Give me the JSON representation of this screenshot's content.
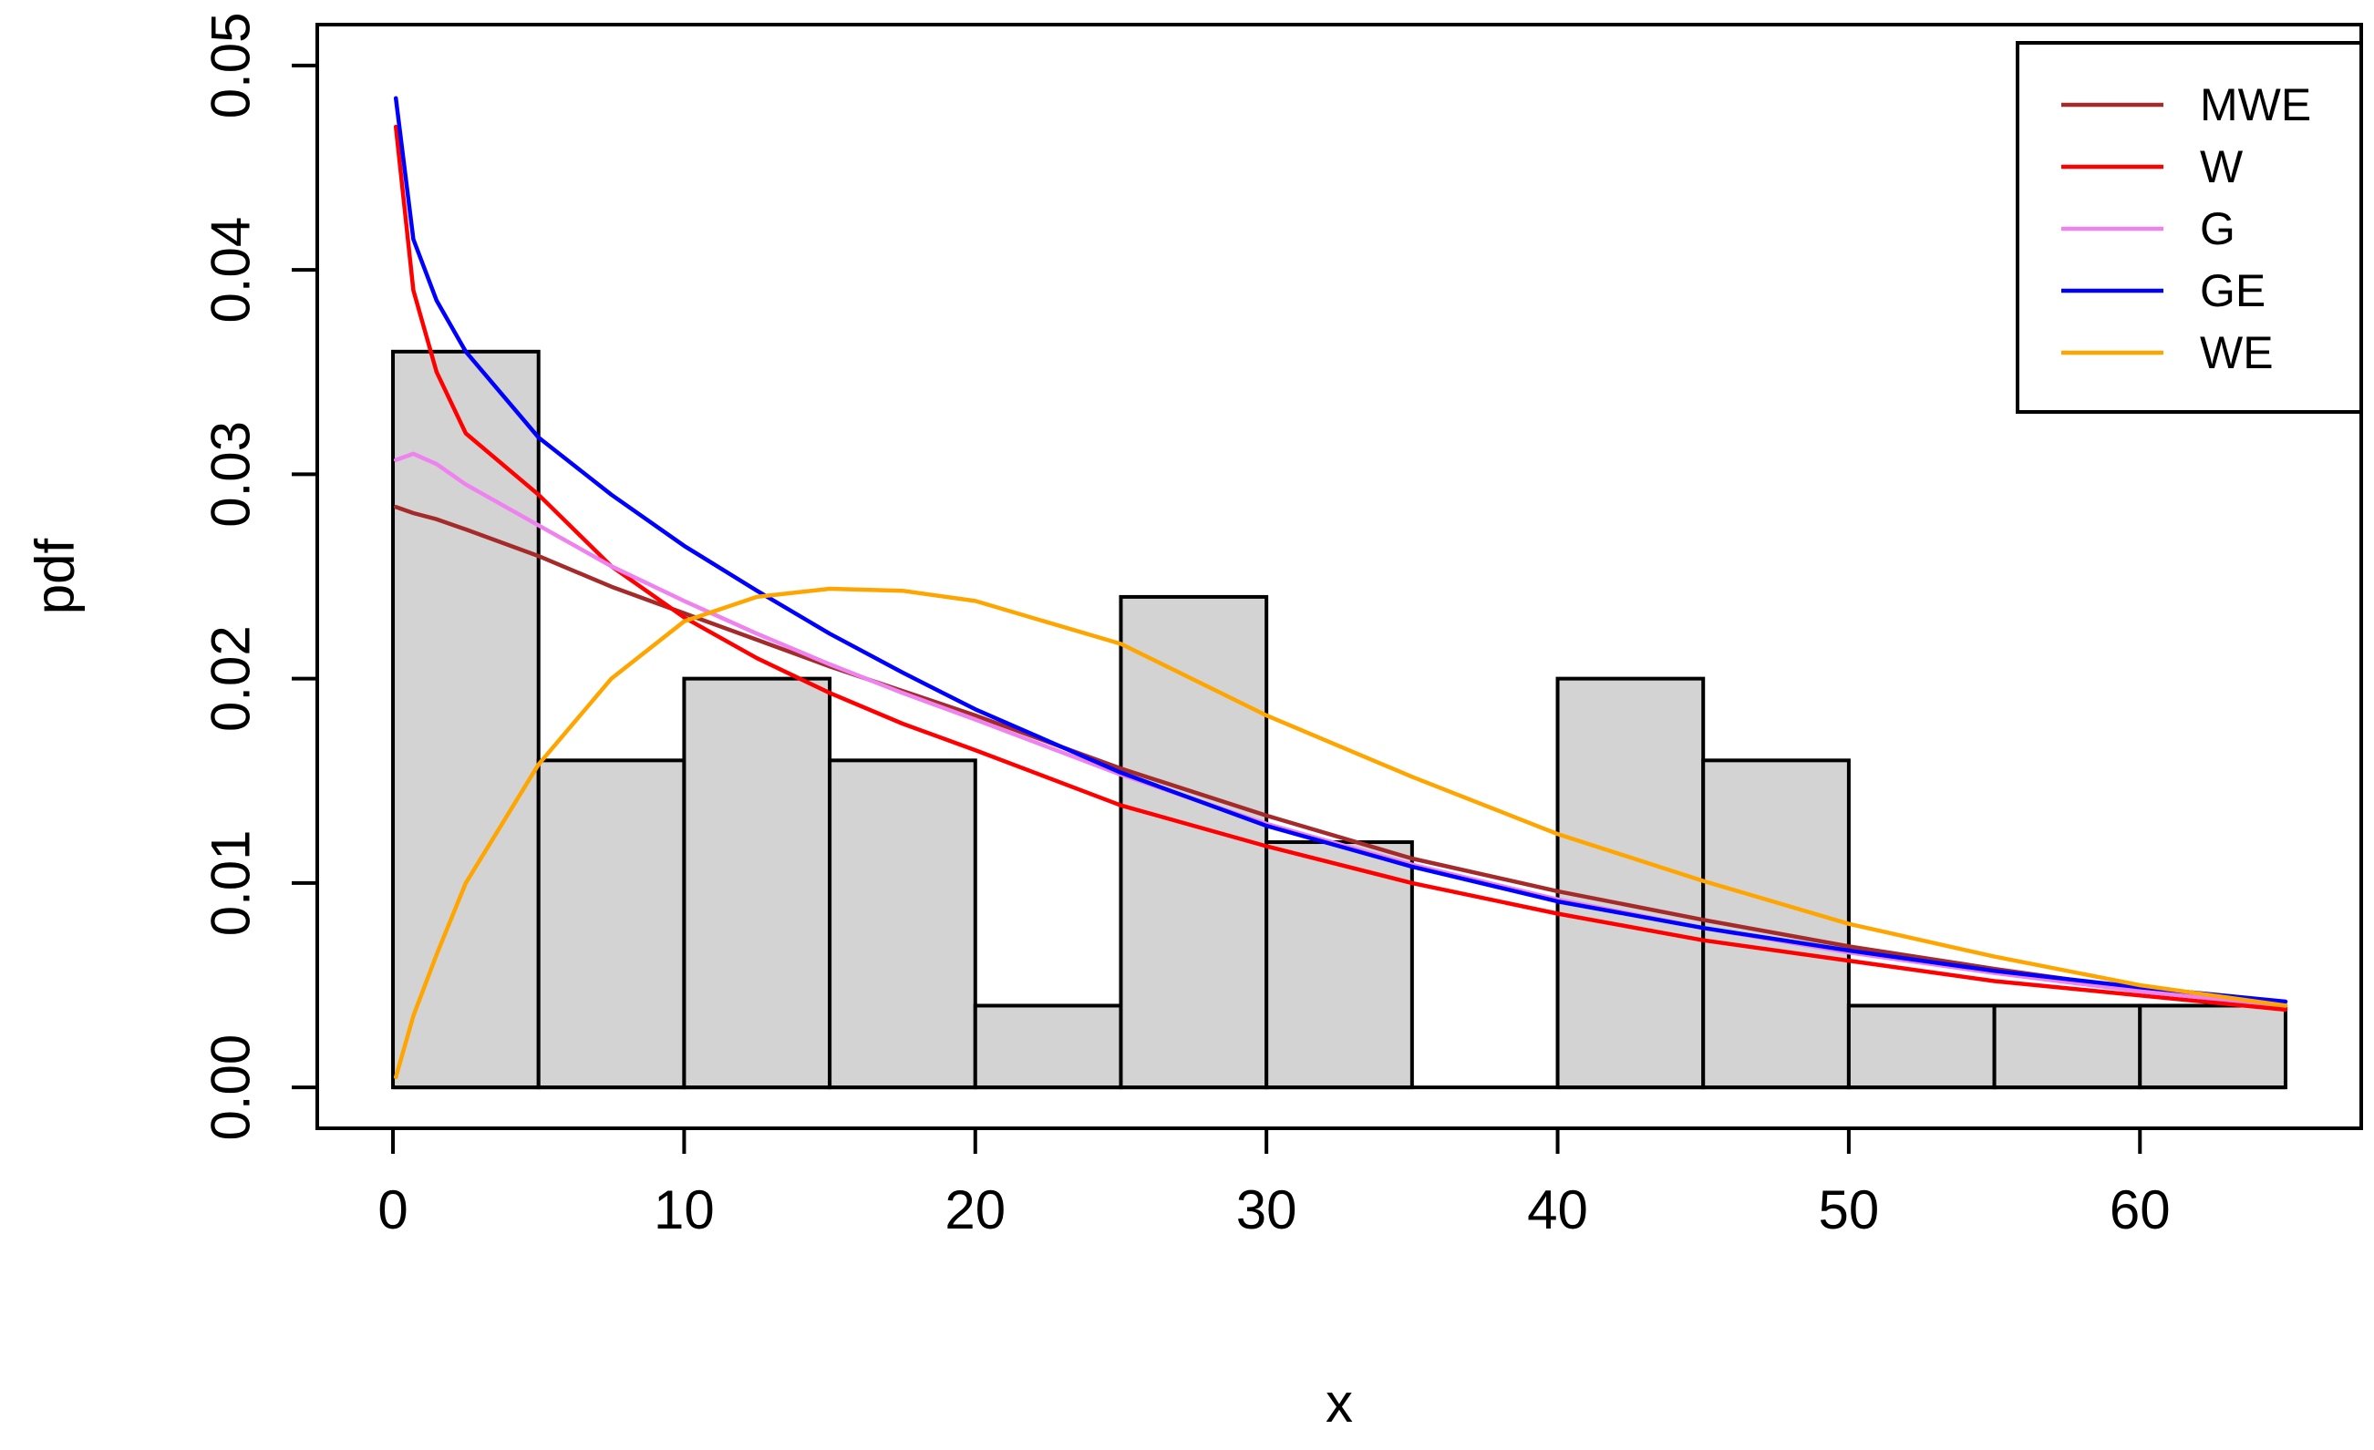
{
  "chart_data": {
    "type": "histogram",
    "title": "",
    "xlabel": "x",
    "ylabel": "pdf",
    "xlim": [
      -2.6,
      67.6
    ],
    "ylim": [
      -0.002,
      0.052
    ],
    "x_ticks": [
      0,
      10,
      20,
      30,
      40,
      50,
      60
    ],
    "x_tick_labels": [
      "0",
      "10",
      "20",
      "30",
      "40",
      "50",
      "60"
    ],
    "y_ticks": [
      0,
      0.01,
      0.02,
      0.03,
      0.04,
      0.05
    ],
    "y_tick_labels": [
      "0.00",
      "0.01",
      "0.02",
      "0.03",
      "0.04",
      "0.05"
    ],
    "grid": false,
    "histogram": {
      "bin_edges": [
        0,
        5,
        10,
        15,
        20,
        25,
        30,
        35,
        40,
        45,
        50,
        55,
        60,
        65
      ],
      "density": [
        0.036,
        0.016,
        0.02,
        0.016,
        0.004,
        0.024,
        0.012,
        0.0,
        0.02,
        0.016,
        0.004,
        0.004,
        0.004
      ],
      "fill": "#d3d3d3",
      "edge": "#000000"
    },
    "x": [
      0.1,
      0.7,
      1.5,
      2.5,
      5,
      7.5,
      10,
      12.5,
      15,
      17.5,
      20,
      25,
      30,
      35,
      40,
      45,
      50,
      55,
      60,
      65
    ],
    "series": [
      {
        "name": "MWE",
        "color": "#a52a2a",
        "values": [
          0.0284,
          0.0281,
          0.0278,
          0.0273,
          0.026,
          0.0245,
          0.0232,
          0.0219,
          0.0206,
          0.0194,
          0.0182,
          0.0156,
          0.0133,
          0.0112,
          0.0096,
          0.0082,
          0.0069,
          0.0058,
          0.0048,
          0.0039
        ]
      },
      {
        "name": "W",
        "color": "#ff0000",
        "values": [
          0.047,
          0.039,
          0.035,
          0.032,
          0.029,
          0.0255,
          0.023,
          0.021,
          0.0193,
          0.0178,
          0.0165,
          0.0138,
          0.0118,
          0.01,
          0.0085,
          0.0072,
          0.0062,
          0.0052,
          0.0045,
          0.0038
        ]
      },
      {
        "name": "G",
        "color": "#ee82ee",
        "values": [
          0.0307,
          0.031,
          0.0305,
          0.0295,
          0.0275,
          0.0255,
          0.0238,
          0.0222,
          0.0207,
          0.0193,
          0.018,
          0.0153,
          0.0129,
          0.0109,
          0.0092,
          0.0078,
          0.0066,
          0.0056,
          0.0047,
          0.004
        ]
      },
      {
        "name": "GE",
        "color": "#0000ff",
        "values": [
          0.0484,
          0.0415,
          0.0385,
          0.036,
          0.0318,
          0.029,
          0.0265,
          0.0243,
          0.0222,
          0.0203,
          0.0185,
          0.0154,
          0.0128,
          0.0108,
          0.0091,
          0.0078,
          0.0067,
          0.0057,
          0.0049,
          0.0042
        ]
      },
      {
        "name": "WE",
        "color": "#ffa500",
        "values": [
          0.0005,
          0.0035,
          0.0065,
          0.01,
          0.0158,
          0.02,
          0.0228,
          0.024,
          0.0244,
          0.0243,
          0.0238,
          0.0217,
          0.0182,
          0.0152,
          0.0124,
          0.0101,
          0.008,
          0.0064,
          0.005,
          0.004
        ]
      }
    ],
    "legend": {
      "placement": "top-right",
      "entries": [
        "MWE",
        "W",
        "G",
        "GE",
        "WE"
      ]
    }
  }
}
